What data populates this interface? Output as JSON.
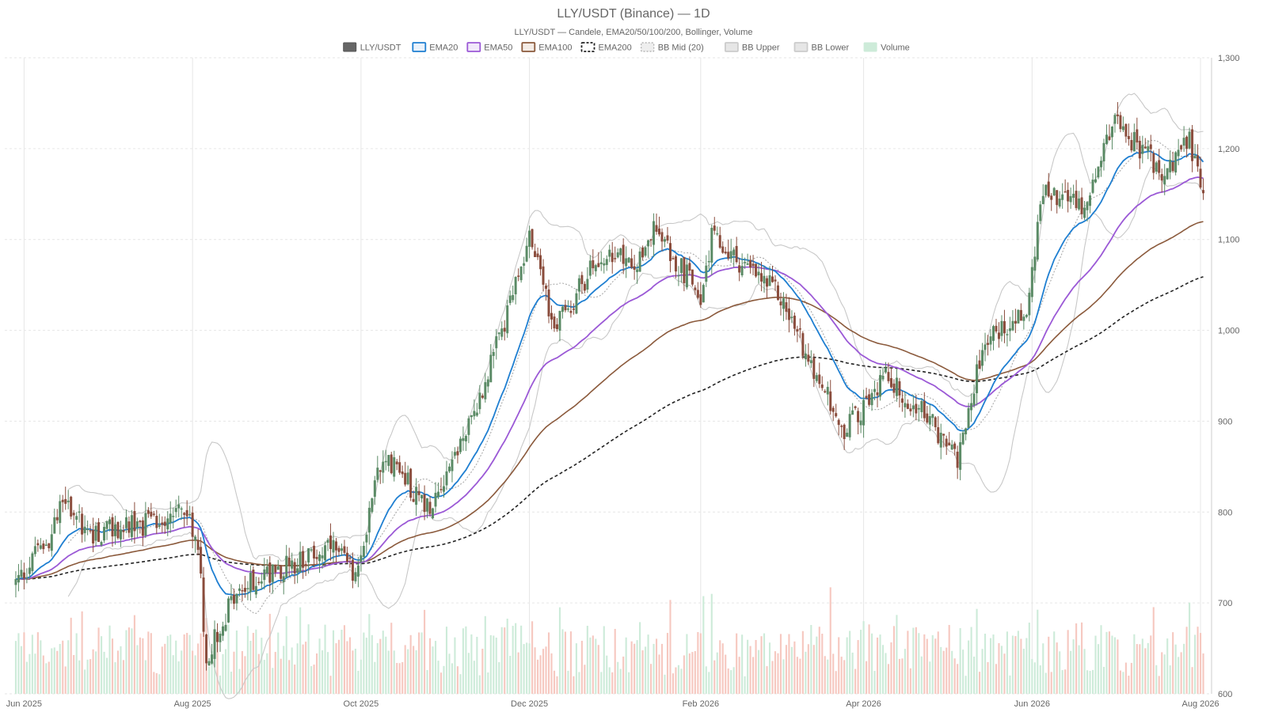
{
  "chart_data": {
    "type": "candlestick",
    "title": "LLY/USDT (Binance) — 1D",
    "subtitle": "LLY/USDT — Candele, EMA20/50/100/200, Bollinger, Volume",
    "legend": [
      {
        "label": "LLY/USDT",
        "color": "#666666",
        "style": "solid-fill"
      },
      {
        "label": "EMA20",
        "color": "#1f7fd1",
        "style": "line"
      },
      {
        "label": "EMA50",
        "color": "#9b59d6",
        "style": "line"
      },
      {
        "label": "EMA100",
        "color": "#8b5a3c",
        "style": "line"
      },
      {
        "label": "EMA200",
        "color": "#222222",
        "style": "dashed"
      },
      {
        "label": "BB Mid (20)",
        "color": "#aaaaaa",
        "style": "dotted"
      },
      {
        "label": "BB Upper",
        "color": "#cccccc",
        "style": "line"
      },
      {
        "label": "BB Lower",
        "color": "#cccccc",
        "style": "line"
      },
      {
        "label": "Volume",
        "color": "#cdebd9",
        "style": "bar"
      }
    ],
    "legend_position": "top-center",
    "x_ticks": [
      "Jun 2025",
      "Aug 2025",
      "Oct 2025",
      "Dec 2025",
      "Feb 2026",
      "Apr 2026",
      "Jun 2026",
      "Aug 2026"
    ],
    "y_ticks": [
      "1,300",
      "1,200",
      "1,100",
      "1,000",
      "900",
      "800",
      "700",
      "600"
    ],
    "ylim": [
      600,
      1300
    ],
    "grid": true,
    "colors": {
      "up": "#5a8a65",
      "down": "#8a4c3c",
      "vol_up": "#cdebd9",
      "vol_down": "#f6c8c0"
    },
    "key_levels": {
      "close_series": [
        {
          "date": "2025-05-29",
          "close": 722
        },
        {
          "date": "2025-06-10",
          "close": 770
        },
        {
          "date": "2025-06-16",
          "close": 815
        },
        {
          "date": "2025-06-25",
          "close": 775
        },
        {
          "date": "2025-07-20",
          "close": 790
        },
        {
          "date": "2025-07-28",
          "close": 810
        },
        {
          "date": "2025-08-03",
          "close": 760
        },
        {
          "date": "2025-08-06",
          "close": 640
        },
        {
          "date": "2025-08-15",
          "close": 700
        },
        {
          "date": "2025-08-25",
          "close": 730
        },
        {
          "date": "2025-09-20",
          "close": 760
        },
        {
          "date": "2025-09-30",
          "close": 730
        },
        {
          "date": "2025-10-06",
          "close": 840
        },
        {
          "date": "2025-10-12",
          "close": 855
        },
        {
          "date": "2025-10-25",
          "close": 805
        },
        {
          "date": "2025-11-10",
          "close": 900
        },
        {
          "date": "2025-11-25",
          "close": 1035
        },
        {
          "date": "2025-12-01",
          "close": 1105
        },
        {
          "date": "2025-12-10",
          "close": 1000
        },
        {
          "date": "2025-12-25",
          "close": 1075
        },
        {
          "date": "2026-01-10",
          "close": 1080
        },
        {
          "date": "2026-01-15",
          "close": 1110
        },
        {
          "date": "2026-02-01",
          "close": 1040
        },
        {
          "date": "2026-02-05",
          "close": 1100
        },
        {
          "date": "2026-03-01",
          "close": 1040
        },
        {
          "date": "2026-03-10",
          "close": 985
        },
        {
          "date": "2026-03-25",
          "close": 890
        },
        {
          "date": "2026-04-10",
          "close": 950
        },
        {
          "date": "2026-04-25",
          "close": 900
        },
        {
          "date": "2026-05-05",
          "close": 860
        },
        {
          "date": "2026-05-15",
          "close": 990
        },
        {
          "date": "2026-05-30",
          "close": 1020
        },
        {
          "date": "2026-06-05",
          "close": 1150
        },
        {
          "date": "2026-06-20",
          "close": 1140
        },
        {
          "date": "2026-07-01",
          "close": 1230
        },
        {
          "date": "2026-07-10",
          "close": 1200
        },
        {
          "date": "2026-07-20",
          "close": 1170
        },
        {
          "date": "2026-07-28",
          "close": 1210
        },
        {
          "date": "2026-08-02",
          "close": 1150
        }
      ]
    }
  }
}
